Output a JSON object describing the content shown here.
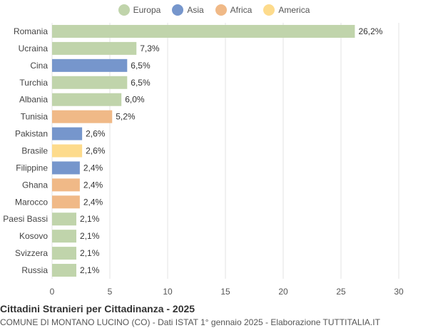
{
  "legend": [
    {
      "label": "Europa",
      "color": "#c0d4ab"
    },
    {
      "label": "Asia",
      "color": "#7696cc"
    },
    {
      "label": "Africa",
      "color": "#f0b987"
    },
    {
      "label": "America",
      "color": "#fddb8c"
    }
  ],
  "chart_data": {
    "type": "bar",
    "orientation": "horizontal",
    "categories": [
      "Romania",
      "Ucraina",
      "Cina",
      "Turchia",
      "Albania",
      "Tunisia",
      "Pakistan",
      "Brasile",
      "Filippine",
      "Ghana",
      "Marocco",
      "Paesi Bassi",
      "Kosovo",
      "Svizzera",
      "Russia"
    ],
    "values": [
      26.2,
      7.3,
      6.5,
      6.5,
      6.0,
      5.2,
      2.6,
      2.6,
      2.4,
      2.4,
      2.4,
      2.1,
      2.1,
      2.1,
      2.1
    ],
    "value_labels": [
      "26,2%",
      "7,3%",
      "6,5%",
      "6,5%",
      "6,0%",
      "5,2%",
      "2,6%",
      "2,6%",
      "2,4%",
      "2,4%",
      "2,4%",
      "2,1%",
      "2,1%",
      "2,1%",
      "2,1%"
    ],
    "continents": [
      "Europa",
      "Europa",
      "Asia",
      "Europa",
      "Europa",
      "Africa",
      "Asia",
      "America",
      "Asia",
      "Africa",
      "Africa",
      "Europa",
      "Europa",
      "Europa",
      "Europa"
    ],
    "xlim": [
      0,
      30
    ],
    "xticks": [
      0,
      5,
      10,
      15,
      20,
      25,
      30
    ],
    "grid": true
  },
  "footer": {
    "title": "Cittadini Stranieri per Cittadinanza - 2025",
    "subtitle": "COMUNE DI MONTANO LUCINO (CO) - Dati ISTAT 1° gennaio 2025 - Elaborazione TUTTITALIA.IT"
  }
}
